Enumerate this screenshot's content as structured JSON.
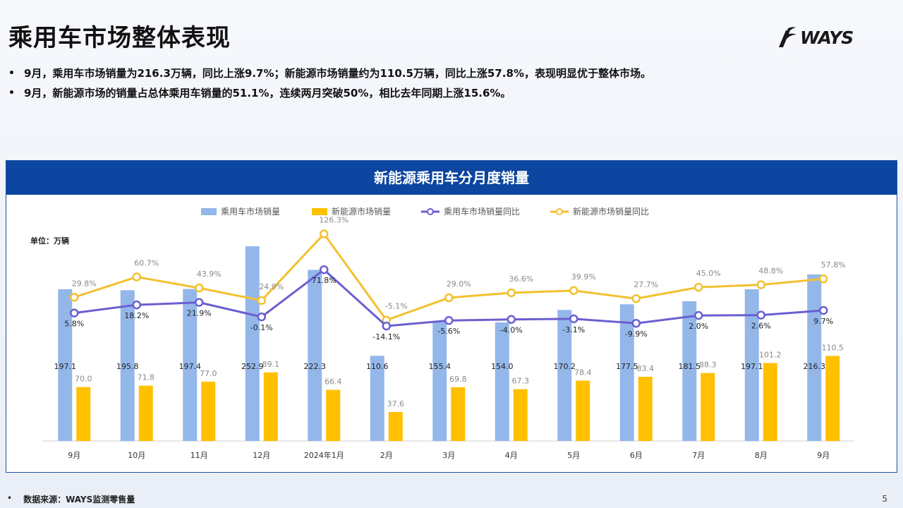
{
  "title": "乘用车市场整体表现",
  "logo": {
    "text": "WAYS"
  },
  "bullets": [
    "9月，乘用车市场销量为216.3万辆，同比上涨9.7%；新能源市场销量约为110.5万辆，同比上涨57.8%，表现明显优于整体市场。",
    "9月，新能源市场的销量占总体乘用车销量的51.1%，连续两月突破50%，相比去年同期上涨15.6%。"
  ],
  "bullet_glyph": "•",
  "chart_data": {
    "type": "bar",
    "title": "新能源乘用车分月度销量",
    "unit_label": "单位：万辆",
    "categories": [
      "9月",
      "10月",
      "11月",
      "12月",
      "2024年1月",
      "2月",
      "3月",
      "4月",
      "5月",
      "6月",
      "7月",
      "8月",
      "9月"
    ],
    "series": [
      {
        "name": "乘用车市场销量",
        "kind": "bar",
        "color": "#94b7ea",
        "values": [
          197.1,
          195.8,
          197.4,
          252.9,
          222.3,
          110.6,
          155.4,
          154.0,
          170.2,
          177.5,
          181.5,
          197.1,
          216.3
        ],
        "labels": [
          "197.1",
          "195.8",
          "197.4",
          "252.9",
          "222.3",
          "110.6",
          "155.4",
          "154.0",
          "170.2",
          "177.5",
          "181.5",
          "197.1",
          "216.3"
        ]
      },
      {
        "name": "新能源市场销量",
        "kind": "bar",
        "color": "#ffc000",
        "values": [
          70.0,
          71.8,
          77.0,
          89.1,
          66.4,
          37.6,
          69.8,
          67.3,
          78.4,
          83.4,
          88.3,
          101.2,
          110.5
        ],
        "labels": [
          "70.0",
          "71.8",
          "77.0",
          "89.1",
          "66.4",
          "37.6",
          "69.8",
          "67.3",
          "78.4",
          "83.4",
          "88.3",
          "101.2",
          "110.5"
        ]
      },
      {
        "name": "乘用车市场销量同比",
        "kind": "line",
        "color": "#6a5fd1",
        "values": [
          5.8,
          18.2,
          21.9,
          -0.1,
          71.8,
          -14.1,
          -5.6,
          -4.0,
          -3.1,
          -9.9,
          2.0,
          2.6,
          9.7
        ],
        "labels": [
          "5.8%",
          "18.2%",
          "21.9%",
          "-0.1%",
          "71.8%",
          "-14.1%",
          "-5.6%",
          "-4.0%",
          "-3.1%",
          "-9.9%",
          "2.0%",
          "2.6%",
          "9.7%"
        ]
      },
      {
        "name": "新能源市场销量同比",
        "kind": "line",
        "color": "#f2c12e",
        "values": [
          29.8,
          60.7,
          43.9,
          24.9,
          126.3,
          -5.1,
          29.0,
          36.6,
          39.9,
          27.7,
          45.0,
          48.8,
          57.8
        ],
        "labels": [
          "29.8%",
          "60.7%",
          "43.9%",
          "24.9%",
          "126.3%",
          "-5.1%",
          "29.0%",
          "36.6%",
          "39.9%",
          "27.7%",
          "45.0%",
          "48.8%",
          "57.8%"
        ]
      }
    ],
    "legend": "top",
    "grid": false
  },
  "footer": {
    "bullet": "•",
    "source": "数据来源：WAYS监测零售量"
  },
  "page_number": "5"
}
